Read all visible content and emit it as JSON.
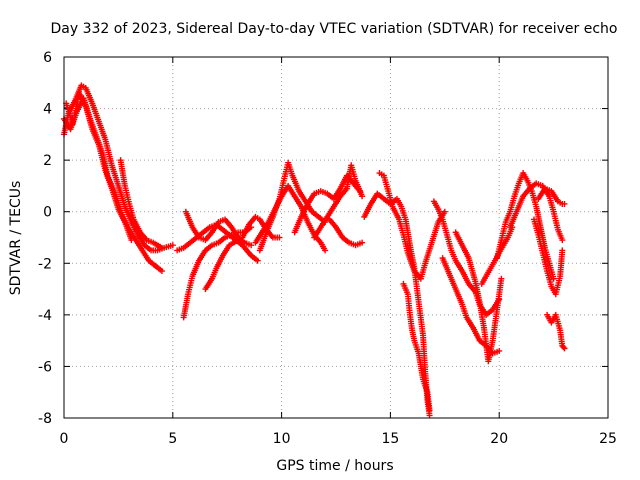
{
  "chart_data": {
    "type": "scatter",
    "title": "Day 332 of 2023, Sidereal Day-to-day VTEC variation (SDTVAR) for receiver echo",
    "xlabel": "GPS time / hours",
    "ylabel": "SDTVAR / TECUs",
    "xlim": [
      0,
      25
    ],
    "ylim": [
      -8,
      6
    ],
    "x_ticks": [
      0,
      5,
      10,
      15,
      20,
      25
    ],
    "y_ticks": [
      -8,
      -6,
      -4,
      -2,
      0,
      2,
      4,
      6
    ],
    "grid": true,
    "marker": "+",
    "series": [
      {
        "name": "SDTVAR",
        "color": "#ff0000",
        "tracks": [
          [
            [
              0.0,
              3.0
            ],
            [
              0.2,
              3.8
            ],
            [
              0.5,
              4.3
            ],
            [
              0.8,
              4.9
            ],
            [
              1.0,
              4.8
            ],
            [
              1.3,
              4.2
            ],
            [
              1.6,
              3.5
            ],
            [
              1.9,
              2.8
            ],
            [
              2.2,
              1.8
            ],
            [
              2.5,
              1.0
            ],
            [
              2.8,
              0.2
            ],
            [
              3.1,
              -0.4
            ],
            [
              3.4,
              -0.9
            ],
            [
              3.7,
              -1.3
            ],
            [
              4.0,
              -1.5
            ],
            [
              4.3,
              -1.5
            ],
            [
              4.6,
              -1.4
            ],
            [
              5.0,
              -1.3
            ]
          ],
          [
            [
              0.0,
              3.6
            ],
            [
              0.3,
              3.2
            ],
            [
              0.6,
              3.9
            ],
            [
              0.9,
              4.4
            ],
            [
              1.2,
              3.6
            ],
            [
              1.5,
              2.9
            ],
            [
              1.8,
              2.2
            ],
            [
              2.0,
              1.4
            ],
            [
              2.4,
              0.6
            ],
            [
              2.7,
              -0.2
            ],
            [
              3.0,
              -0.7
            ],
            [
              3.3,
              -1.1
            ],
            [
              3.6,
              -1.5
            ],
            [
              3.9,
              -1.9
            ],
            [
              4.2,
              -2.1
            ],
            [
              4.5,
              -2.3
            ]
          ],
          [
            [
              0.1,
              4.2
            ],
            [
              0.4,
              3.4
            ],
            [
              0.7,
              4.6
            ],
            [
              1.0,
              4.1
            ],
            [
              1.3,
              3.2
            ],
            [
              1.6,
              2.6
            ],
            [
              1.9,
              1.6
            ],
            [
              2.2,
              0.9
            ],
            [
              2.5,
              0.1
            ],
            [
              2.8,
              -0.4
            ],
            [
              3.1,
              -1.1
            ]
          ],
          [
            [
              2.6,
              2.0
            ],
            [
              2.8,
              1.0
            ],
            [
              3.0,
              0.3
            ],
            [
              3.2,
              -0.3
            ],
            [
              3.5,
              -0.8
            ],
            [
              3.8,
              -1.1
            ],
            [
              4.1,
              -1.2
            ],
            [
              4.5,
              -1.4
            ]
          ],
          [
            [
              5.5,
              -4.1
            ],
            [
              5.7,
              -3.2
            ],
            [
              5.9,
              -2.5
            ],
            [
              6.2,
              -1.9
            ],
            [
              6.5,
              -1.5
            ],
            [
              6.8,
              -1.3
            ],
            [
              7.1,
              -1.2
            ],
            [
              7.4,
              -1.0
            ],
            [
              7.7,
              -0.9
            ],
            [
              8.0,
              -0.8
            ],
            [
              8.3,
              -0.8
            ],
            [
              8.6,
              -0.6
            ]
          ],
          [
            [
              5.6,
              0.0
            ],
            [
              5.9,
              -0.6
            ],
            [
              6.2,
              -1.0
            ],
            [
              6.5,
              -1.1
            ],
            [
              6.8,
              -0.8
            ],
            [
              7.1,
              -0.4
            ],
            [
              7.4,
              -0.3
            ],
            [
              7.7,
              -0.6
            ],
            [
              8.0,
              -1.0
            ],
            [
              8.3,
              -1.2
            ],
            [
              8.6,
              -1.3
            ]
          ],
          [
            [
              6.5,
              -3.0
            ],
            [
              6.8,
              -2.6
            ],
            [
              7.0,
              -2.2
            ],
            [
              7.3,
              -1.7
            ],
            [
              7.6,
              -1.3
            ],
            [
              8.0,
              -1.1
            ],
            [
              8.3,
              -1.4
            ],
            [
              8.6,
              -1.7
            ],
            [
              8.9,
              -1.9
            ]
          ],
          [
            [
              8.2,
              -1.0
            ],
            [
              8.5,
              -0.5
            ],
            [
              8.8,
              -0.2
            ],
            [
              9.0,
              -0.3
            ],
            [
              9.3,
              -0.7
            ],
            [
              9.6,
              -1.0
            ],
            [
              9.9,
              -1.0
            ]
          ],
          [
            [
              5.2,
              -1.5
            ],
            [
              5.5,
              -1.4
            ],
            [
              5.8,
              -1.2
            ],
            [
              6.1,
              -1.0
            ],
            [
              6.4,
              -0.8
            ],
            [
              6.7,
              -0.6
            ],
            [
              7.0,
              -0.5
            ],
            [
              7.3,
              -0.7
            ],
            [
              7.6,
              -0.9
            ],
            [
              7.9,
              -1.1
            ],
            [
              8.2,
              -1.3
            ]
          ],
          [
            [
              9.0,
              -1.5
            ],
            [
              9.3,
              -0.8
            ],
            [
              9.6,
              -0.2
            ],
            [
              9.9,
              0.5
            ],
            [
              10.1,
              1.2
            ],
            [
              10.3,
              1.9
            ],
            [
              10.5,
              1.4
            ],
            [
              10.8,
              0.8
            ],
            [
              11.1,
              0.4
            ],
            [
              11.4,
              0.0
            ],
            [
              11.7,
              -0.2
            ],
            [
              12.0,
              -0.4
            ]
          ],
          [
            [
              8.8,
              -1.2
            ],
            [
              9.1,
              -0.8
            ],
            [
              9.4,
              -0.4
            ],
            [
              9.7,
              0.1
            ],
            [
              10.0,
              0.6
            ],
            [
              10.3,
              1.0
            ],
            [
              10.6,
              0.6
            ],
            [
              10.9,
              0.2
            ],
            [
              11.2,
              -0.4
            ],
            [
              11.5,
              -0.9
            ],
            [
              11.8,
              -1.2
            ],
            [
              12.0,
              -1.5
            ]
          ],
          [
            [
              10.6,
              -0.8
            ],
            [
              10.9,
              -0.2
            ],
            [
              11.2,
              0.3
            ],
            [
              11.5,
              0.7
            ],
            [
              11.8,
              0.8
            ],
            [
              12.1,
              0.7
            ],
            [
              12.4,
              0.5
            ],
            [
              12.7,
              0.9
            ],
            [
              13.0,
              1.4
            ],
            [
              13.3,
              1.1
            ],
            [
              13.6,
              0.8
            ]
          ],
          [
            [
              11.5,
              -1.0
            ],
            [
              11.8,
              -0.6
            ],
            [
              12.1,
              -0.2
            ],
            [
              12.4,
              0.2
            ],
            [
              12.7,
              0.6
            ],
            [
              13.0,
              0.9
            ],
            [
              13.2,
              1.8
            ],
            [
              13.4,
              1.2
            ],
            [
              13.7,
              0.6
            ]
          ],
          [
            [
              12.2,
              -0.3
            ],
            [
              12.5,
              -0.6
            ],
            [
              12.8,
              -1.0
            ],
            [
              13.1,
              -1.2
            ],
            [
              13.4,
              -1.3
            ],
            [
              13.7,
              -1.2
            ]
          ],
          [
            [
              13.8,
              -0.2
            ],
            [
              14.1,
              0.3
            ],
            [
              14.4,
              0.7
            ],
            [
              14.7,
              0.5
            ],
            [
              15.0,
              0.3
            ],
            [
              15.3,
              0.5
            ],
            [
              15.5,
              0.2
            ],
            [
              15.7,
              -0.3
            ],
            [
              15.9,
              -1.3
            ],
            [
              16.1,
              -2.2
            ],
            [
              16.3,
              -3.5
            ],
            [
              16.5,
              -4.8
            ],
            [
              16.6,
              -6.2
            ],
            [
              16.7,
              -7.3
            ],
            [
              16.8,
              -7.9
            ]
          ],
          [
            [
              14.5,
              1.5
            ],
            [
              14.7,
              1.4
            ],
            [
              14.9,
              0.8
            ],
            [
              15.1,
              0.2
            ],
            [
              15.4,
              -0.3
            ],
            [
              15.6,
              -0.9
            ],
            [
              15.8,
              -1.6
            ],
            [
              16.1,
              -2.3
            ],
            [
              16.4,
              -2.6
            ],
            [
              16.6,
              -2.0
            ],
            [
              16.9,
              -1.2
            ],
            [
              17.2,
              -0.4
            ],
            [
              17.5,
              0.0
            ]
          ],
          [
            [
              15.6,
              -2.8
            ],
            [
              15.8,
              -3.2
            ],
            [
              15.9,
              -4.0
            ],
            [
              16.0,
              -4.6
            ],
            [
              16.1,
              -5.0
            ],
            [
              16.3,
              -5.5
            ],
            [
              16.5,
              -6.5
            ],
            [
              16.7,
              -7.0
            ],
            [
              16.8,
              -7.7
            ]
          ],
          [
            [
              17.0,
              0.4
            ],
            [
              17.2,
              0.1
            ],
            [
              17.4,
              -0.3
            ],
            [
              17.6,
              -0.9
            ],
            [
              17.8,
              -1.5
            ],
            [
              18.0,
              -1.9
            ],
            [
              18.3,
              -2.3
            ],
            [
              18.6,
              -2.8
            ],
            [
              18.9,
              -3.1
            ],
            [
              19.1,
              -3.6
            ],
            [
              19.4,
              -4.0
            ],
            [
              19.7,
              -3.8
            ],
            [
              20.0,
              -3.4
            ]
          ],
          [
            [
              17.4,
              -1.8
            ],
            [
              17.7,
              -2.4
            ],
            [
              18.0,
              -3.0
            ],
            [
              18.3,
              -3.6
            ],
            [
              18.5,
              -4.1
            ],
            [
              18.8,
              -4.5
            ],
            [
              19.1,
              -5.0
            ],
            [
              19.4,
              -5.2
            ],
            [
              19.7,
              -5.5
            ],
            [
              20.0,
              -5.4
            ]
          ],
          [
            [
              18.0,
              -0.8
            ],
            [
              18.3,
              -1.3
            ],
            [
              18.6,
              -1.8
            ],
            [
              18.9,
              -2.7
            ],
            [
              19.1,
              -3.5
            ],
            [
              19.3,
              -4.5
            ],
            [
              19.5,
              -5.8
            ],
            [
              19.7,
              -5.0
            ],
            [
              19.9,
              -3.8
            ],
            [
              20.1,
              -2.6
            ]
          ],
          [
            [
              19.2,
              -2.8
            ],
            [
              19.4,
              -2.5
            ],
            [
              19.6,
              -2.2
            ],
            [
              19.8,
              -1.9
            ],
            [
              20.0,
              -1.6
            ],
            [
              20.2,
              -1.3
            ],
            [
              20.4,
              -1.0
            ],
            [
              20.6,
              -0.6
            ]
          ],
          [
            [
              19.9,
              -1.8
            ],
            [
              20.1,
              -1.1
            ],
            [
              20.3,
              -0.4
            ],
            [
              20.5,
              0.0
            ],
            [
              20.7,
              0.6
            ],
            [
              20.9,
              1.1
            ],
            [
              21.1,
              1.5
            ],
            [
              21.3,
              1.2
            ],
            [
              21.5,
              0.8
            ],
            [
              21.7,
              0.2
            ],
            [
              21.9,
              -0.6
            ],
            [
              22.1,
              -1.4
            ],
            [
              22.3,
              -2.0
            ],
            [
              22.5,
              -2.6
            ]
          ],
          [
            [
              20.5,
              -0.6
            ],
            [
              20.8,
              0.0
            ],
            [
              21.1,
              0.6
            ],
            [
              21.4,
              0.9
            ],
            [
              21.7,
              1.1
            ],
            [
              22.0,
              1.0
            ],
            [
              22.3,
              0.6
            ],
            [
              22.5,
              0.0
            ],
            [
              22.7,
              -0.7
            ],
            [
              22.9,
              -1.1
            ]
          ],
          [
            [
              21.6,
              -0.3
            ],
            [
              21.8,
              -0.9
            ],
            [
              22.0,
              -1.6
            ],
            [
              22.2,
              -2.3
            ],
            [
              22.4,
              -2.9
            ],
            [
              22.6,
              -3.2
            ],
            [
              22.8,
              -2.5
            ],
            [
              22.9,
              -1.5
            ]
          ],
          [
            [
              22.2,
              -4.0
            ],
            [
              22.4,
              -4.3
            ],
            [
              22.6,
              -4.0
            ],
            [
              22.8,
              -4.6
            ],
            [
              22.9,
              -5.2
            ],
            [
              23.0,
              -5.3
            ]
          ],
          [
            [
              21.8,
              0.5
            ],
            [
              22.1,
              0.9
            ],
            [
              22.4,
              0.8
            ],
            [
              22.7,
              0.4
            ],
            [
              22.9,
              0.3
            ],
            [
              23.0,
              0.3
            ]
          ]
        ]
      }
    ]
  }
}
